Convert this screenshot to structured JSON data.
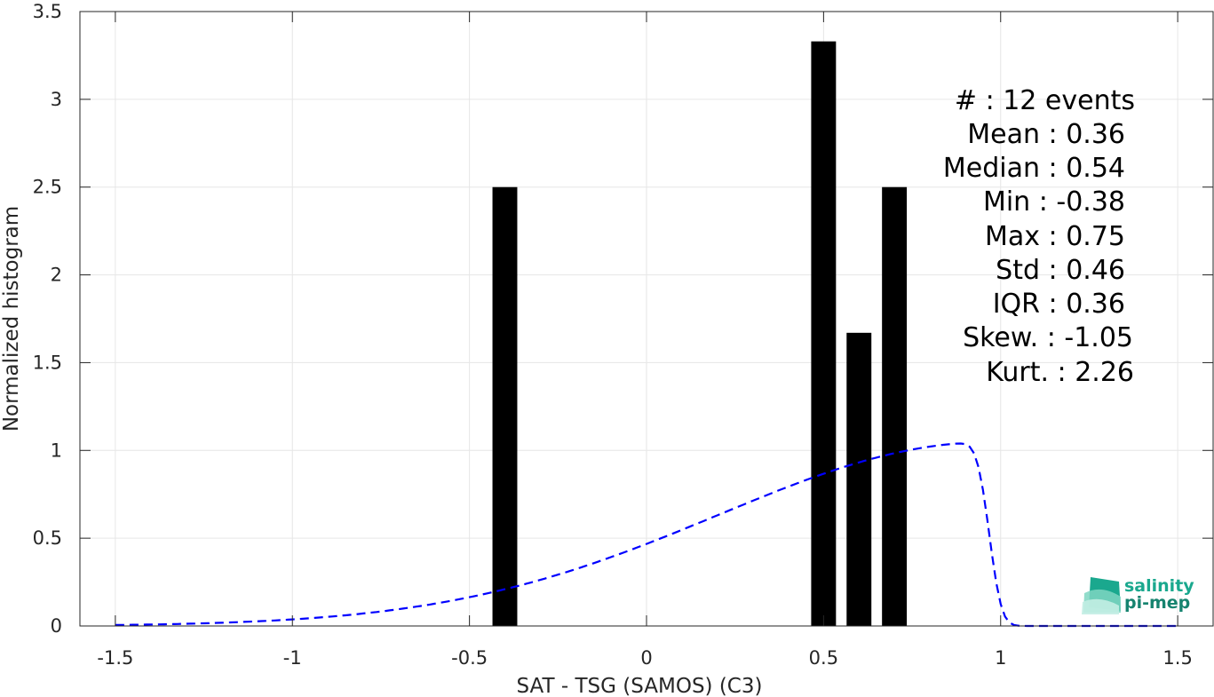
{
  "chart_data": {
    "type": "bar",
    "xlabel": "SAT - TSG (SAMOS) (C3)",
    "ylabel": "Normalized histogram",
    "xlim": [
      -1.6,
      1.6
    ],
    "ylim": [
      0,
      3.5
    ],
    "xticks": [
      -1.5,
      -1,
      -0.5,
      0,
      0.5,
      1,
      1.5
    ],
    "xtick_labels": [
      "-1.5",
      "-1",
      "-0.5",
      "0",
      "0.5",
      "1",
      "1.5"
    ],
    "yticks": [
      0,
      0.5,
      1,
      1.5,
      2,
      2.5,
      3,
      3.5
    ],
    "ytick_labels": [
      "0",
      "0.5",
      "1",
      "1.5",
      "2",
      "2.5",
      "3",
      "3.5"
    ],
    "grid": true,
    "bar_color": "#000000",
    "bars": [
      {
        "x": -0.4,
        "value": 2.5
      },
      {
        "x": 0.5,
        "value": 3.33
      },
      {
        "x": 0.6,
        "value": 1.67
      },
      {
        "x": 0.7,
        "value": 2.5
      }
    ],
    "bar_width": 0.07,
    "fit_curve": {
      "style": "dashed",
      "color": "#0000ff",
      "mean": 0.36,
      "std": 0.46,
      "skewness": -1.05,
      "x_range": [
        -1.5,
        1.5
      ]
    },
    "stats": [
      "#  : 12 events",
      "Mean : 0.36",
      "Median : 0.54",
      "Min : -0.38",
      "Max : 0.75",
      "Std : 0.46",
      "IQR : 0.36",
      "Skew. : -1.05",
      "Kurt. : 2.26"
    ]
  },
  "logo": {
    "line1": "salinity",
    "line2": "pi-mep",
    "color1": "#1aa88e",
    "color2": "#16836f"
  }
}
